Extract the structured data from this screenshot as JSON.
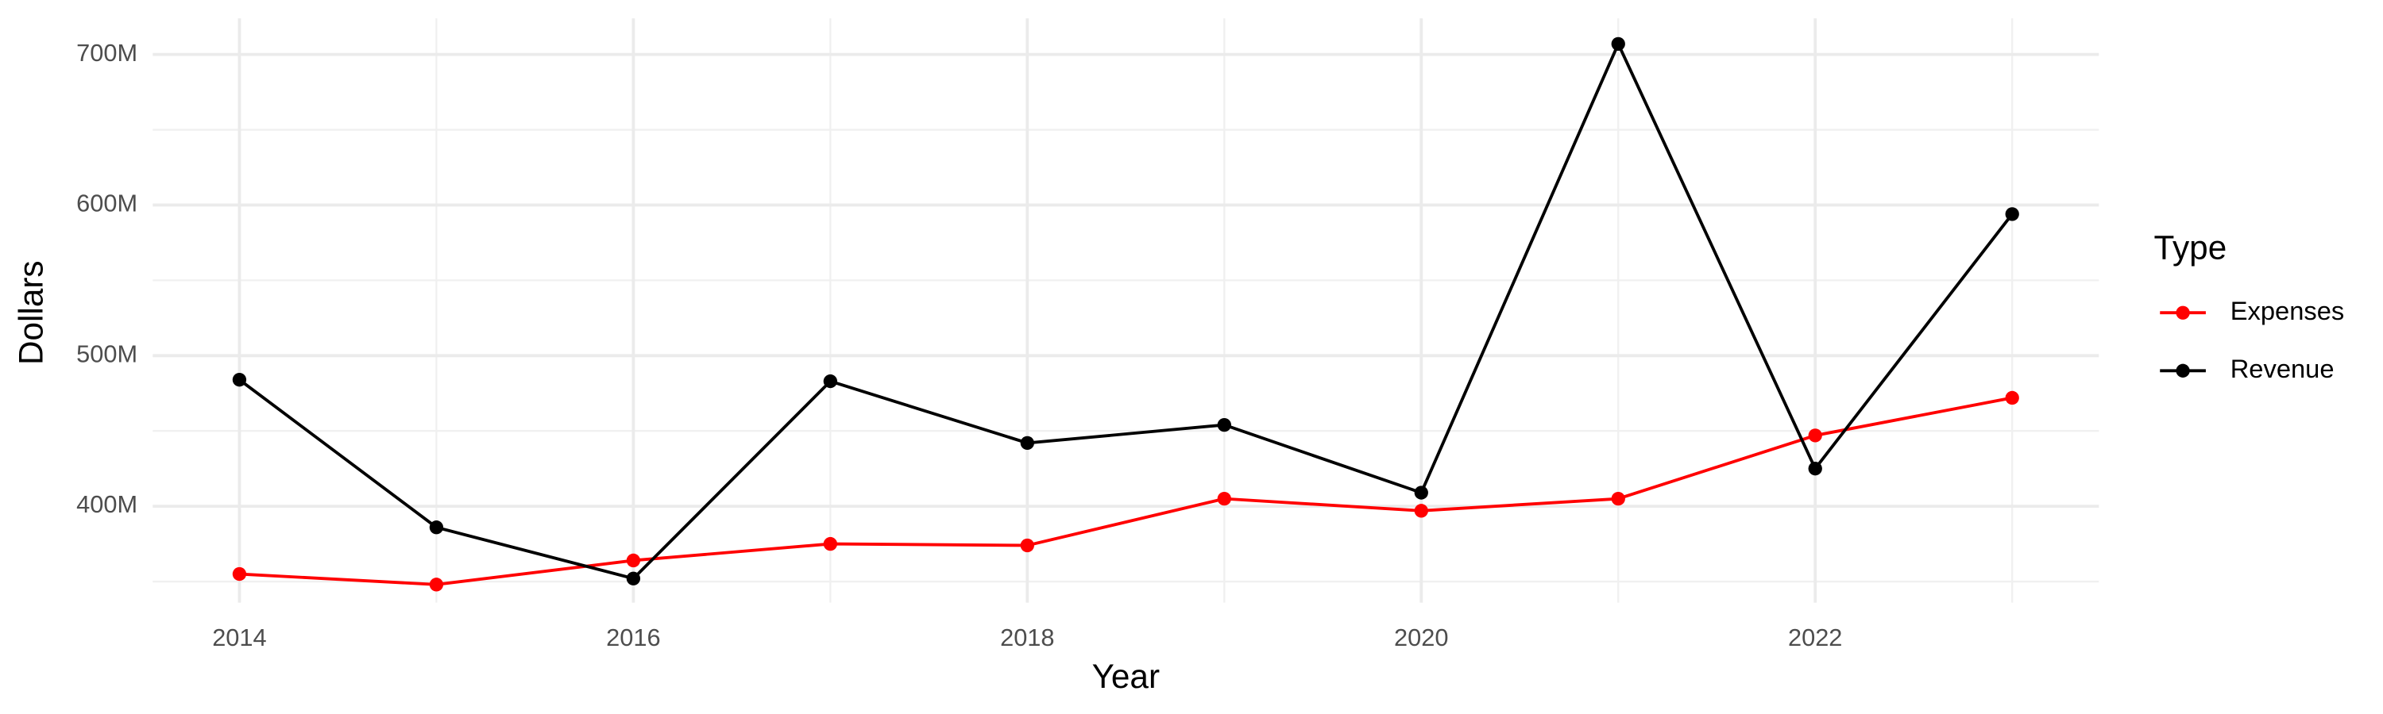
{
  "chart_data": {
    "type": "line",
    "x_label": "Year",
    "y_label": "Dollars",
    "legend_title": "Type",
    "x": [
      2014,
      2015,
      2016,
      2017,
      2018,
      2019,
      2020,
      2021,
      2022,
      2023
    ],
    "series": [
      {
        "name": "Expenses",
        "color": "#ff0000",
        "values": [
          355000000,
          348000000,
          364000000,
          375000000,
          374000000,
          405000000,
          397000000,
          405000000,
          447000000,
          472000000
        ]
      },
      {
        "name": "Revenue",
        "color": "#000000",
        "values": [
          484000000,
          386000000,
          352000000,
          483000000,
          442000000,
          454000000,
          409000000,
          707000000,
          425000000,
          594000000
        ]
      }
    ],
    "xlim": [
      2013.56,
      2023.44
    ],
    "xticks": [
      2014,
      2016,
      2018,
      2020,
      2022
    ],
    "ylim": [
      336000000,
      724000000
    ],
    "yticks": [
      {
        "value": 400000000,
        "label": "400M"
      },
      {
        "value": 500000000,
        "label": "500M"
      },
      {
        "value": 600000000,
        "label": "600M"
      },
      {
        "value": 700000000,
        "label": "700M"
      }
    ],
    "grid": true,
    "legend_position": "right"
  }
}
